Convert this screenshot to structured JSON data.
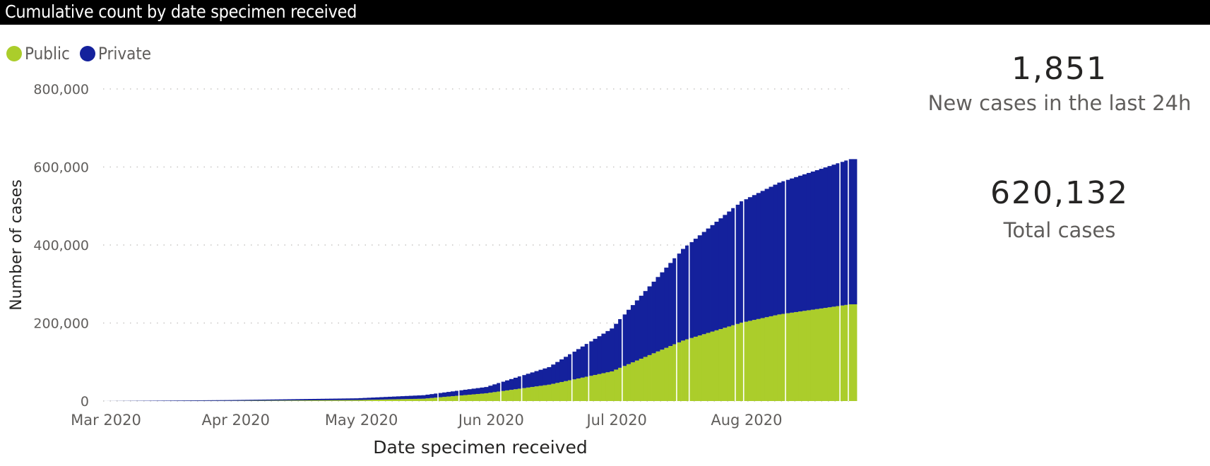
{
  "header": {
    "title": "Cumulative count by date specimen received"
  },
  "legend": [
    {
      "label": "Public",
      "color": "#abcd2b"
    },
    {
      "label": "Private",
      "color": "#14219c"
    }
  ],
  "kpis": [
    {
      "value": "1,851",
      "label": "New cases in the last 24h"
    },
    {
      "value": "620,132",
      "label": "Total cases"
    }
  ],
  "chart_data": {
    "type": "bar",
    "stacked": true,
    "title": "Cumulative count by date specimen received",
    "xlabel": "Date specimen received",
    "ylabel": "Number of cases",
    "ylim": [
      0,
      800000
    ],
    "yticks": [
      0,
      200000,
      400000,
      600000,
      800000
    ],
    "ytick_labels": [
      "0",
      "200,000",
      "400,000",
      "600,000",
      "800,000"
    ],
    "xtick_labels": [
      "Mar 2020",
      "Apr 2020",
      "May 2020",
      "Jun 2020",
      "Jul 2020",
      "Aug 2020"
    ],
    "xtick_days": [
      0,
      31,
      61,
      92,
      122,
      153
    ],
    "x_start": "2020-03-01",
    "x_days": 180,
    "grid": "horizontal-dotted",
    "legend_position": "top-left",
    "series": [
      {
        "name": "Public",
        "color": "#abcd2b",
        "anchors_day": [
          0,
          31,
          61,
          77,
          92,
          107,
          122,
          139,
          153,
          162,
          179
        ],
        "anchors_value": [
          0,
          500,
          2500,
          6000,
          20000,
          42000,
          76000,
          155000,
          201000,
          222000,
          248000
        ]
      },
      {
        "name": "Private",
        "color": "#14219c",
        "anchors_day": [
          0,
          31,
          61,
          77,
          92,
          107,
          122,
          139,
          153,
          162,
          179
        ],
        "anchors_value": [
          0,
          2000,
          4500,
          9000,
          16000,
          45000,
          110000,
          235000,
          311000,
          338000,
          372132
        ]
      }
    ],
    "gap_days": [
      80,
      85,
      95,
      100,
      112,
      116,
      124,
      137,
      140,
      151,
      153,
      163,
      176,
      178
    ]
  }
}
